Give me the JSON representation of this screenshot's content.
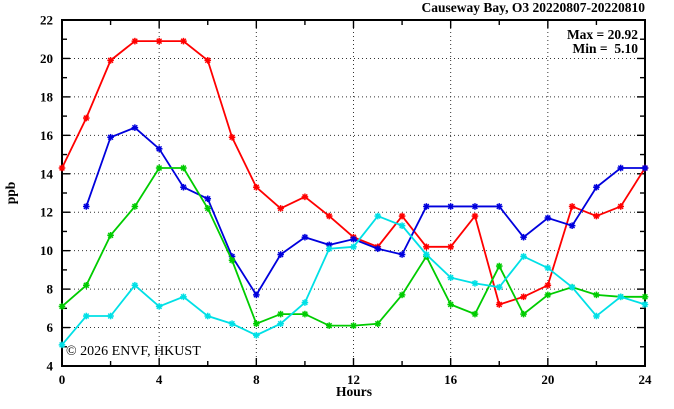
{
  "chart_data": {
    "type": "line",
    "title": "Causeway Bay, O3 20220807-20220810",
    "xlabel": "Hours",
    "ylabel": "ppb",
    "xlim": [
      0,
      24
    ],
    "ylim": [
      4,
      22
    ],
    "x_major_ticks": [
      0,
      4,
      8,
      12,
      16,
      20,
      24
    ],
    "x_minor_ticks": [
      2,
      6,
      10,
      14,
      18,
      22
    ],
    "y_major_ticks": [
      4,
      6,
      8,
      10,
      12,
      14,
      16,
      18,
      20,
      22
    ],
    "y_minor_ticks": [
      5,
      7,
      9,
      11,
      13,
      15,
      17,
      19,
      21
    ],
    "grid": "dotted",
    "legend_position": "none",
    "annotations": {
      "max_label": "Max = 20.92",
      "min_label": "Min =  5.10"
    },
    "watermark": "© 2026 ENVF, HKUST",
    "axis_color": "#000000",
    "grid_color": "#333333",
    "x": [
      0,
      1,
      2,
      3,
      4,
      5,
      6,
      7,
      8,
      9,
      10,
      11,
      12,
      13,
      14,
      15,
      16,
      17,
      18,
      19,
      20,
      21,
      22,
      23,
      24
    ],
    "series": [
      {
        "name": "red-line",
        "color": "#ff0000",
        "values": [
          14.3,
          16.9,
          19.9,
          20.9,
          20.9,
          20.9,
          19.9,
          15.9,
          13.3,
          12.2,
          12.8,
          11.8,
          10.7,
          10.2,
          11.8,
          10.2,
          10.2,
          11.8,
          7.2,
          7.6,
          8.2,
          12.3,
          11.8,
          12.3,
          14.3
        ]
      },
      {
        "name": "blue-line",
        "color": "#0000dd",
        "values": [
          null,
          12.3,
          15.9,
          16.4,
          15.3,
          13.3,
          12.7,
          9.7,
          7.7,
          9.8,
          10.7,
          10.3,
          10.6,
          10.1,
          9.8,
          12.3,
          12.3,
          12.3,
          12.3,
          10.7,
          11.7,
          11.3,
          13.3,
          14.3,
          14.3
        ]
      },
      {
        "name": "green-line",
        "color": "#00cc00",
        "values": [
          7.1,
          8.2,
          10.8,
          12.3,
          14.3,
          14.3,
          12.2,
          9.5,
          6.2,
          6.7,
          6.7,
          6.1,
          6.1,
          6.2,
          7.7,
          9.7,
          7.2,
          6.7,
          9.2,
          6.7,
          7.7,
          8.1,
          7.7,
          7.6,
          7.6
        ]
      },
      {
        "name": "cyan-line",
        "color": "#00e0e6",
        "values": [
          5.1,
          6.6,
          6.6,
          8.2,
          7.1,
          7.6,
          6.6,
          6.2,
          5.6,
          6.2,
          7.3,
          10.1,
          10.2,
          11.8,
          11.3,
          9.8,
          8.6,
          8.3,
          8.1,
          9.7,
          9.1,
          8.1,
          6.6,
          7.6,
          7.2
        ]
      }
    ]
  }
}
